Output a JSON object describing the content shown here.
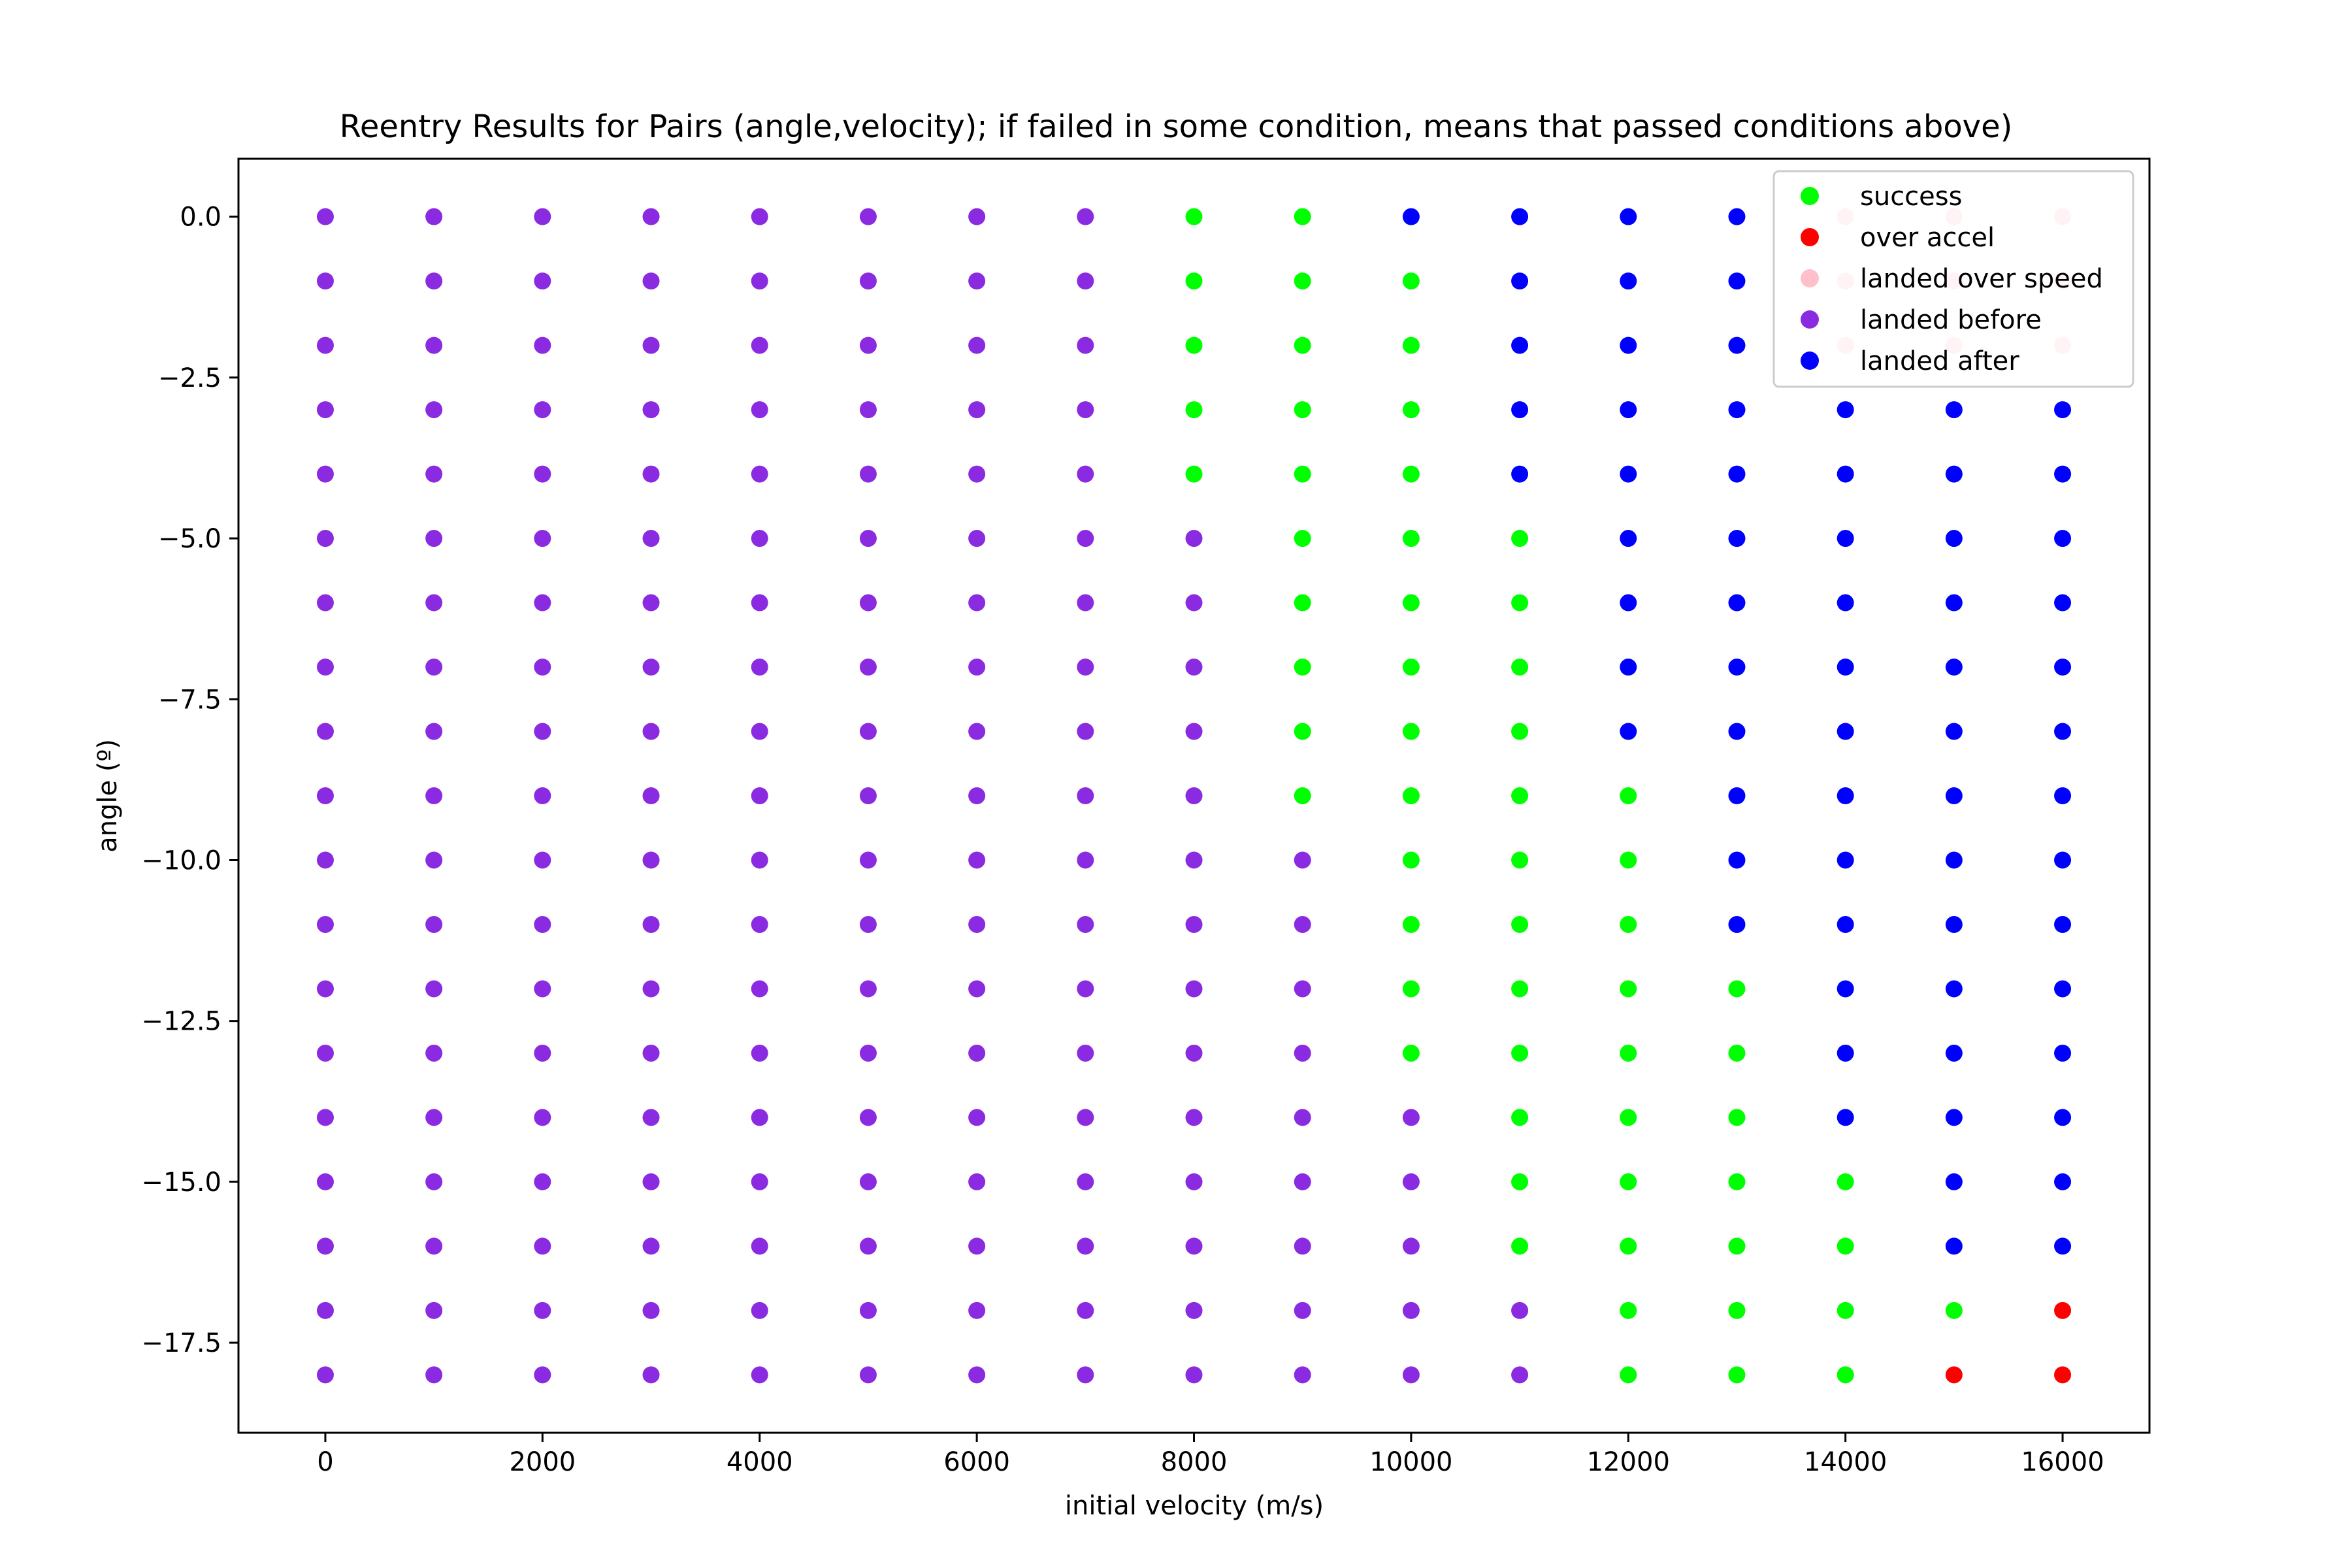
{
  "chart_data": {
    "type": "scatter",
    "title": "Reentry Results for Pairs (angle,velocity); if failed in some condition, means that passed conditions above)",
    "xlabel": "initial velocity (m/s)",
    "ylabel": "angle (º)",
    "xlim": [
      -800,
      16800
    ],
    "ylim": [
      -18.9,
      0.9
    ],
    "x_ticks": [
      0,
      2000,
      4000,
      6000,
      8000,
      10000,
      12000,
      14000,
      16000
    ],
    "x_tick_labels": [
      "0",
      "2000",
      "4000",
      "6000",
      "8000",
      "10000",
      "12000",
      "14000",
      "16000"
    ],
    "y_ticks": [
      0,
      -2.5,
      -5,
      -7.5,
      -10,
      -12.5,
      -15,
      -17.5
    ],
    "y_tick_labels": [
      "0.0",
      "−2.5",
      "−5.0",
      "−7.5",
      "−10.0",
      "−12.5",
      "−15.0",
      "−17.5"
    ],
    "grid": false,
    "legend_position": "top-right",
    "velocities": [
      0,
      1000,
      2000,
      3000,
      4000,
      5000,
      6000,
      7000,
      8000,
      9000,
      10000,
      11000,
      12000,
      13000,
      14000,
      15000,
      16000
    ],
    "angles": [
      0,
      -1,
      -2,
      -3,
      -4,
      -5,
      -6,
      -7,
      -8,
      -9,
      -10,
      -11,
      -12,
      -13,
      -14,
      -15,
      -16,
      -17,
      -18
    ],
    "legend": [
      {
        "key": "success",
        "name": "success",
        "color": "#00ff00"
      },
      {
        "key": "over_accel",
        "name": "over accel",
        "color": "#ff0000"
      },
      {
        "key": "over_speed",
        "name": "landed over speed",
        "color": "#ffc0cb"
      },
      {
        "key": "before",
        "name": "landed before",
        "color": "#8a2be2"
      },
      {
        "key": "after",
        "name": "landed after",
        "color": "#0000ff"
      }
    ],
    "outcome_codes": {
      "S": "success",
      "A": "over_accel",
      "P": "over_speed",
      "B": "before",
      "F": "after"
    },
    "rows_by_angle": [
      "BBBBBBBBSSFFFFPPP",
      "BBBBBBBBSSSFFFPPP",
      "BBBBBBBBSSSFFFPPP",
      "BBBBBBBBSSSFFFFFF",
      "BBBBBBBBSSSFFFFFF",
      "BBBBBBBBBSSSFFFFF",
      "BBBBBBBBBSSSFFFFF",
      "BBBBBBBBBSSSFFFFF",
      "BBBBBBBBBSSSFFFFF",
      "BBBBBBBBBSSSSFFFF",
      "BBBBBBBBBBSSSFFFF",
      "BBBBBBBBBBSSSFFFF",
      "BBBBBBBBBBSSSSFFF",
      "BBBBBBBBBBSSSSFFF",
      "BBBBBBBBBBBSSSFFF",
      "BBBBBBBBBBBSSSSFF",
      "BBBBBBBBBBBSSSSFF",
      "BBBBBBBBBBBBSSSSA",
      "BBBBBBBBBBBBSSSAA"
    ]
  }
}
